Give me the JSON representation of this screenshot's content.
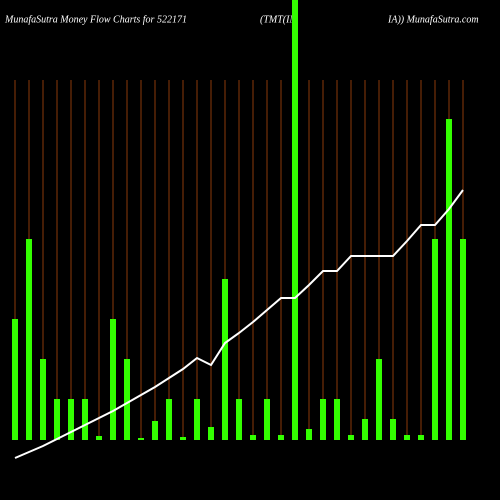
{
  "chart_data": {
    "type": "bar_line",
    "title_parts": [
      "MunafaSutra  Money Flow  Charts for 522171",
      "(TMT(IN",
      "IA)) MunafaSutra.com"
    ],
    "categories": [
      null,
      null,
      null,
      null,
      null,
      null,
      null,
      null,
      null,
      null,
      null,
      null,
      null,
      null,
      null,
      null,
      null,
      null,
      null,
      null,
      null,
      null,
      null,
      null,
      null,
      null,
      null,
      null,
      null,
      null,
      null,
      null,
      null
    ],
    "series": [
      {
        "color": "#33ff00",
        "values": [
          121,
          201,
          81,
          41,
          41,
          41,
          4,
          121,
          81,
          2,
          19,
          41,
          3,
          41,
          13,
          161,
          41,
          5,
          41,
          5,
          440,
          11,
          41,
          41,
          5,
          21,
          81,
          21,
          5,
          5,
          201,
          321,
          201
        ]
      },
      {
        "color": "#ffffff",
        "values": [
          -18,
          -12,
          -6,
          1,
          8,
          15,
          22,
          29,
          37,
          45,
          53,
          62,
          71,
          82,
          75,
          97,
          107,
          118,
          130,
          142,
          142,
          155,
          169,
          169,
          184,
          184,
          184,
          184,
          199,
          215,
          215,
          231,
          250
        ]
      }
    ],
    "ylim": [
      -60,
      440
    ]
  }
}
